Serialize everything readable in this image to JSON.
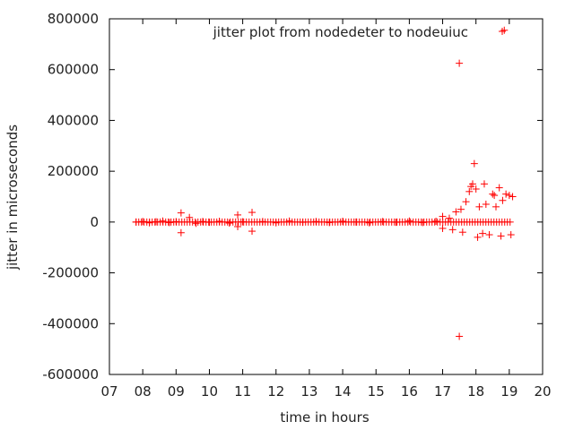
{
  "chart_data": {
    "type": "scatter",
    "xlabel": "time in hours",
    "ylabel": "jitter in microseconds",
    "xlim": [
      7,
      20
    ],
    "ylim": [
      -600000,
      800000
    ],
    "x_tick_labels": [
      "07",
      "08",
      "09",
      "10",
      "11",
      "12",
      "13",
      "14",
      "15",
      "16",
      "17",
      "18",
      "19",
      "20"
    ],
    "y_tick_labels": [
      "-600000",
      "-400000",
      "-200000",
      "0",
      "200000",
      "400000",
      "600000",
      "800000"
    ],
    "x_ticks": [
      7,
      8,
      9,
      10,
      11,
      12,
      13,
      14,
      15,
      16,
      17,
      18,
      19,
      20
    ],
    "y_ticks": [
      -600000,
      -400000,
      -200000,
      0,
      200000,
      400000,
      600000,
      800000
    ],
    "grid": false,
    "legend_position": "top-right",
    "series": [
      {
        "name": "jitter plot from nodedeter to nodeuiuc",
        "marker": "+",
        "color": "#ff0000",
        "points": [
          [
            7.8,
            0
          ],
          [
            8.0,
            2000
          ],
          [
            8.2,
            -3000
          ],
          [
            8.4,
            1000
          ],
          [
            8.6,
            4000
          ],
          [
            8.8,
            -2000
          ],
          [
            9.0,
            1500
          ],
          [
            9.15,
            36000
          ],
          [
            9.15,
            -42000
          ],
          [
            9.4,
            18000
          ],
          [
            9.6,
            -5000
          ],
          [
            9.8,
            2000
          ],
          [
            10.0,
            -1000
          ],
          [
            10.3,
            3000
          ],
          [
            10.6,
            -4000
          ],
          [
            10.85,
            28000
          ],
          [
            10.85,
            -18000
          ],
          [
            11.0,
            1000
          ],
          [
            11.28,
            38000
          ],
          [
            11.28,
            -36000
          ],
          [
            11.6,
            2000
          ],
          [
            12.0,
            -3000
          ],
          [
            12.4,
            4000
          ],
          [
            12.8,
            -1000
          ],
          [
            13.2,
            2000
          ],
          [
            13.6,
            -2000
          ],
          [
            14.0,
            3000
          ],
          [
            14.4,
            0
          ],
          [
            14.8,
            -3000
          ],
          [
            15.2,
            2000
          ],
          [
            15.6,
            -1000
          ],
          [
            16.0,
            4000
          ],
          [
            16.4,
            -2000
          ],
          [
            16.8,
            3000
          ],
          [
            17.0,
            -25000
          ],
          [
            17.0,
            22000
          ],
          [
            17.2,
            15000
          ],
          [
            17.3,
            -30000
          ],
          [
            17.4,
            40000
          ],
          [
            17.5,
            625000
          ],
          [
            17.5,
            -450000
          ],
          [
            17.55,
            50000
          ],
          [
            17.6,
            -40000
          ],
          [
            17.7,
            80000
          ],
          [
            17.8,
            120000
          ],
          [
            17.85,
            140000
          ],
          [
            17.9,
            150000
          ],
          [
            17.95,
            230000
          ],
          [
            18.0,
            130000
          ],
          [
            18.05,
            -60000
          ],
          [
            18.1,
            60000
          ],
          [
            18.2,
            -45000
          ],
          [
            18.25,
            150000
          ],
          [
            18.3,
            70000
          ],
          [
            18.4,
            -50000
          ],
          [
            18.5,
            110000
          ],
          [
            18.55,
            105000
          ],
          [
            18.6,
            60000
          ],
          [
            18.7,
            135000
          ],
          [
            18.75,
            -55000
          ],
          [
            18.8,
            85000
          ],
          [
            18.85,
            755000
          ],
          [
            18.9,
            110000
          ],
          [
            19.0,
            105000
          ],
          [
            19.05,
            -50000
          ],
          [
            19.1,
            100000
          ]
        ]
      }
    ]
  }
}
